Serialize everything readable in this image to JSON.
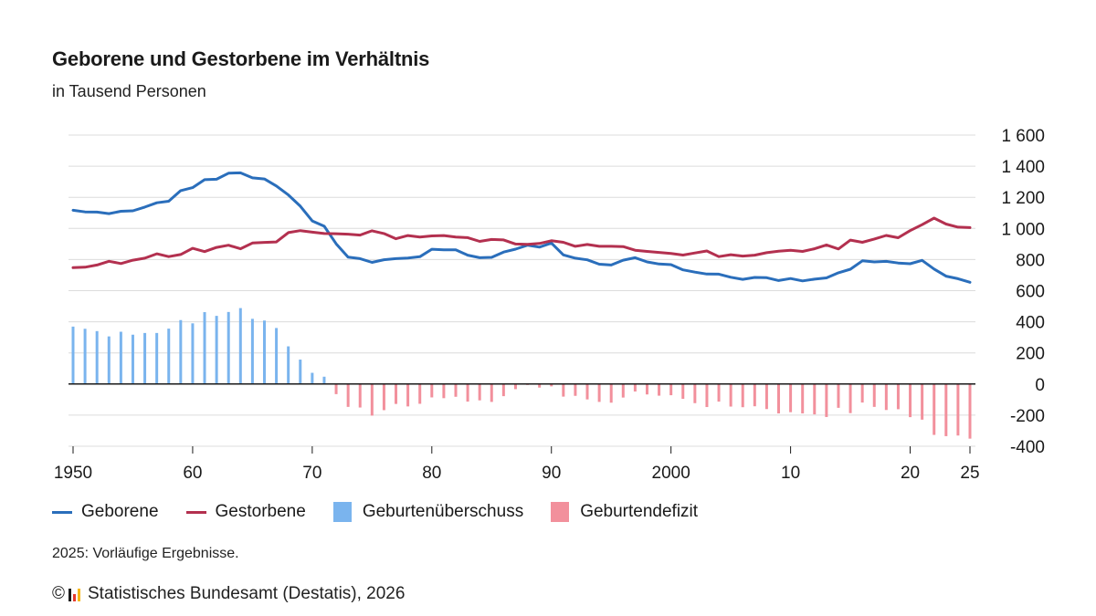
{
  "title": "Geborene und Gestorbene im Verhältnis",
  "subtitle": "in Tausend Personen",
  "note": "2025: Vorläufige Ergebnisse.",
  "source": {
    "copyright_symbol": "©",
    "text": "Statistisches Bundesamt (Destatis), 2026"
  },
  "legend": {
    "born": "Geborene",
    "died": "Gestorbene",
    "surplus": "Geburtenüberschuss",
    "deficit": "Geburtendefizit"
  },
  "colors": {
    "born": "#2a6ebb",
    "died": "#b3304f",
    "surplus": "#7ab4ee",
    "deficit": "#f2909c",
    "grid": "#dcdcdc",
    "zero_line": "#1a1a1a",
    "logo": [
      "#1a1a1a",
      "#e63b2e",
      "#f6b716"
    ]
  },
  "chart_data": {
    "type": "line",
    "x_start": 1950,
    "x_end": 2025,
    "ylim": [
      -400,
      1600
    ],
    "y_ticks": [
      -400,
      -200,
      0,
      200,
      400,
      600,
      800,
      1000,
      1200,
      1400,
      1600
    ],
    "y_tick_labels": [
      "-400",
      "-200",
      "0",
      "200",
      "400",
      "600",
      "800",
      "1 000",
      "1 200",
      "1 400",
      "1 600"
    ],
    "x_ticks": [
      1950,
      1960,
      1970,
      1980,
      1990,
      2000,
      2010,
      2020,
      2025
    ],
    "x_tick_labels": [
      "1950",
      "60",
      "70",
      "80",
      "90",
      "2000",
      "10",
      "20",
      "25"
    ],
    "grid": true,
    "legend_position": "bottom",
    "series": [
      {
        "name": "Geborene",
        "type": "line",
        "values": [
          1117,
          1106,
          1105,
          1095,
          1110,
          1113,
          1137,
          1165,
          1175,
          1243,
          1262,
          1313,
          1316,
          1355,
          1357,
          1325,
          1318,
          1273,
          1215,
          1143,
          1048,
          1014,
          901,
          816,
          806,
          782,
          799,
          806,
          810,
          818,
          866,
          863,
          862,
          828,
          812,
          814,
          848,
          867,
          892,
          880,
          906,
          830,
          809,
          798,
          770,
          765,
          796,
          812,
          785,
          771,
          767,
          734,
          719,
          707,
          706,
          686,
          673,
          685,
          683,
          665,
          678,
          663,
          674,
          682,
          715,
          738,
          792,
          785,
          788,
          778,
          773,
          795,
          739,
          693,
          677,
          654
        ]
      },
      {
        "name": "Gestorbene",
        "type": "line",
        "values": [
          748,
          751,
          765,
          789,
          774,
          796,
          809,
          837,
          819,
          832,
          872,
          851,
          878,
          892,
          869,
          906,
          910,
          913,
          973,
          986,
          976,
          967,
          966,
          963,
          957,
          985,
          967,
          934,
          954,
          945,
          952,
          954,
          944,
          941,
          917,
          929,
          926,
          900,
          898,
          903,
          921,
          911,
          885,
          897,
          885,
          885,
          883,
          860,
          852,
          846,
          839,
          829,
          842,
          855,
          819,
          831,
          822,
          828,
          844,
          854,
          859,
          852,
          869,
          894,
          868,
          925,
          911,
          932,
          955,
          940,
          986,
          1024,
          1066,
          1028,
          1008,
          1005
        ]
      },
      {
        "name": "Geburtenüberschuss / Geburtendefizit",
        "type": "bar",
        "values": [
          369,
          355,
          340,
          306,
          336,
          317,
          328,
          328,
          356,
          411,
          390,
          462,
          438,
          463,
          488,
          419,
          408,
          360,
          242,
          157,
          72,
          47,
          -65,
          -147,
          -151,
          -203,
          -168,
          -128,
          -144,
          -127,
          -86,
          -91,
          -82,
          -113,
          -105,
          -115,
          -78,
          -33,
          -6,
          -23,
          -15,
          -81,
          -76,
          -99,
          -115,
          -120,
          -87,
          -48,
          -67,
          -75,
          -72,
          -95,
          -123,
          -148,
          -113,
          -145,
          -149,
          -143,
          -161,
          -189,
          -181,
          -189,
          -195,
          -212,
          -153,
          -187,
          -119,
          -147,
          -167,
          -162,
          -213,
          -229,
          -327,
          -335,
          -331,
          -351
        ]
      }
    ]
  }
}
